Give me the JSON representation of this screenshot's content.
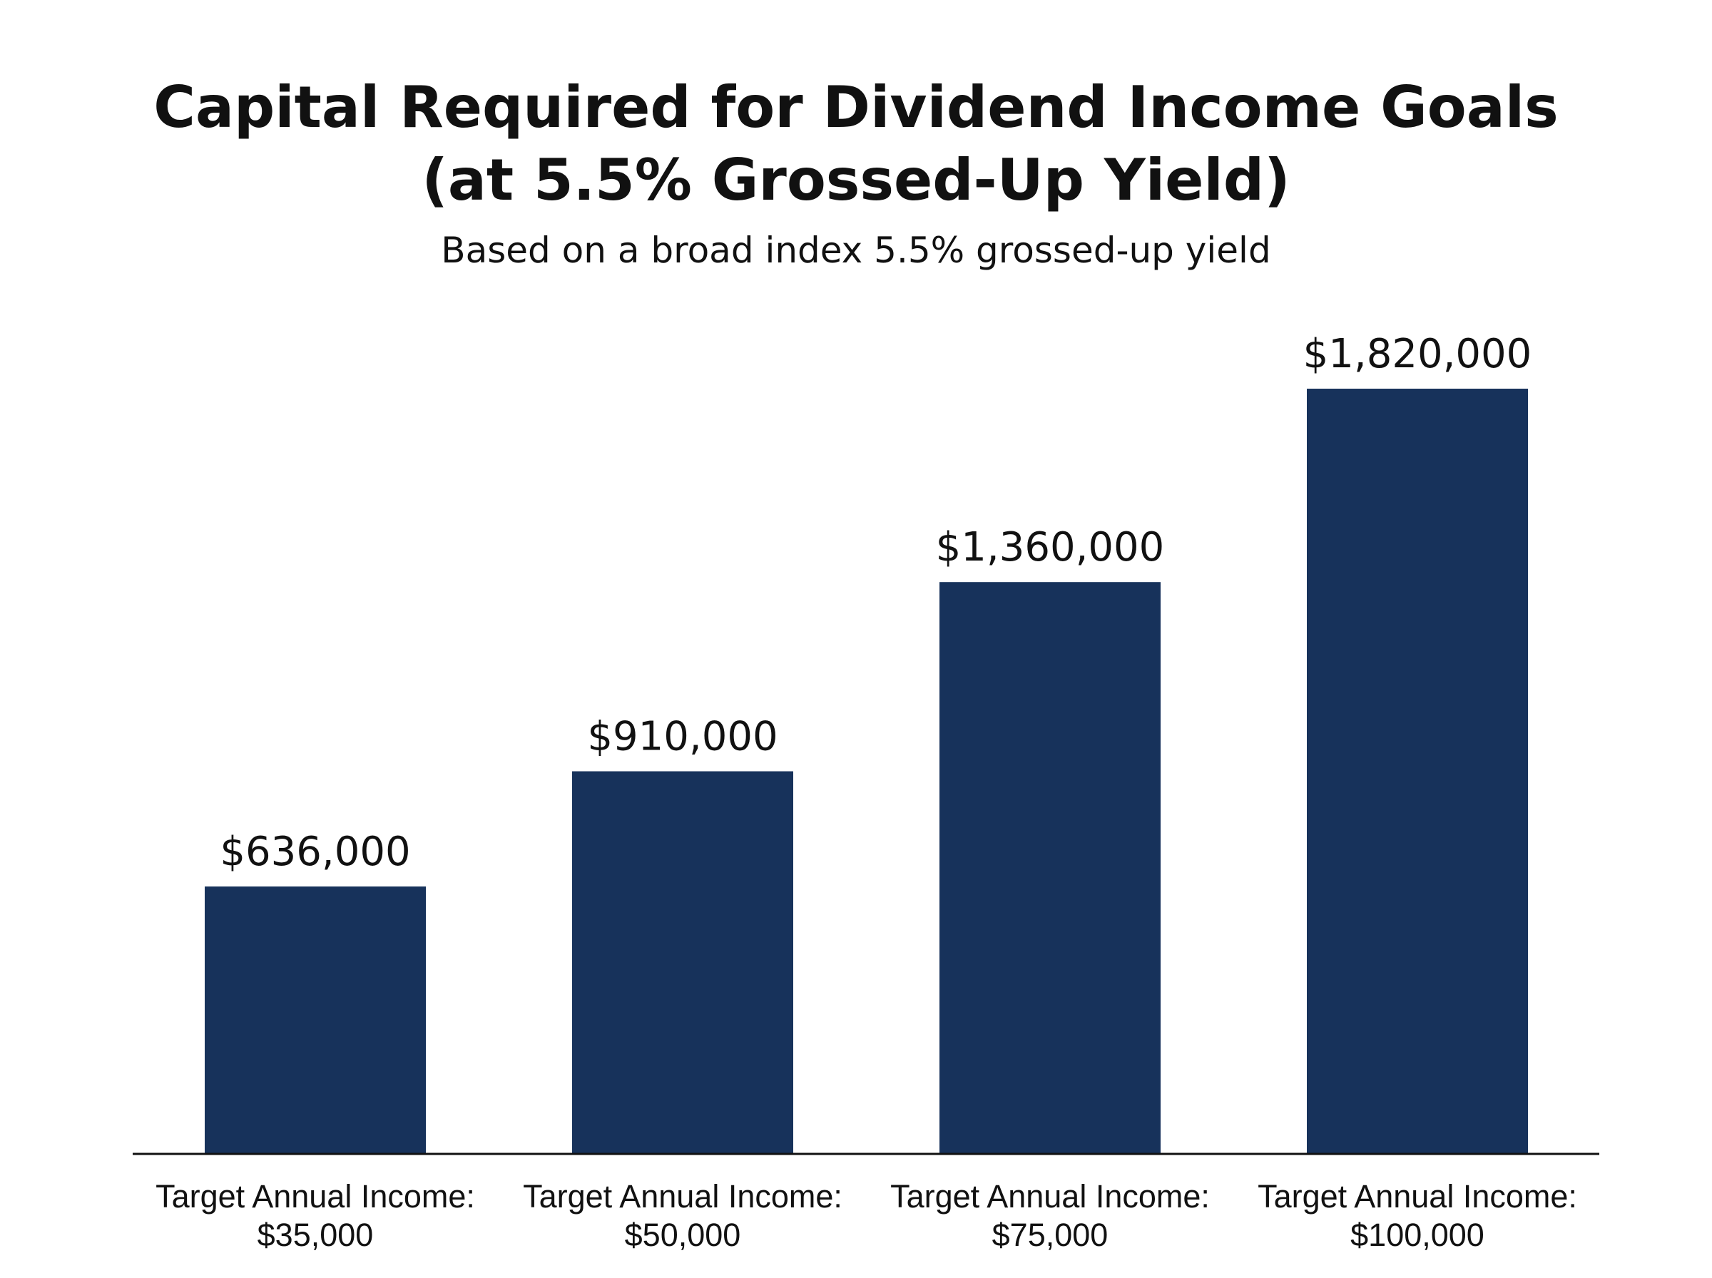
{
  "title": {
    "line1": "Capital Required for Dividend Income Goals",
    "line2": "(at 5.5% Grossed-Up Yield)"
  },
  "subtitle": "Based on a broad index 5.5% grossed-up yield",
  "colors": {
    "bar": "#17325B",
    "axis": "#111111",
    "text": "#111111",
    "background": "#ffffff"
  },
  "chart_data": {
    "type": "bar",
    "title": "Capital Required for Dividend Income Goals (at 5.5% Grossed-Up Yield)",
    "subtitle": "Based on a broad index 5.5% grossed-up yield",
    "categories": [
      [
        "Target Annual Income:",
        "$35,000"
      ],
      [
        "Target Annual Income:",
        "$50,000"
      ],
      [
        "Target Annual Income:",
        "$75,000"
      ],
      [
        "Target Annual Income:",
        "$100,000"
      ]
    ],
    "values": [
      636000,
      910000,
      1360000,
      1820000
    ],
    "value_labels": [
      "$636,000",
      "$910,000",
      "$1,360,000",
      "$1,820,000"
    ],
    "xlabel": "",
    "ylabel": "",
    "ylim": [
      0,
      2000000
    ],
    "grid": false,
    "legend": "none"
  }
}
